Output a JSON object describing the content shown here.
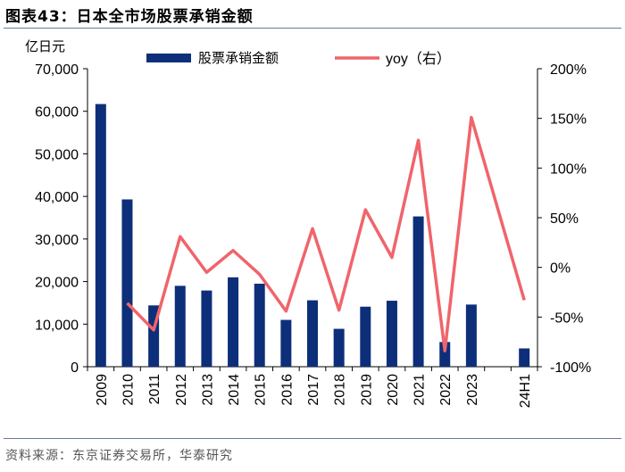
{
  "figure": {
    "label": "图表43：",
    "title": "日本全市场股票承销金额",
    "source": "资料来源：东京证券交易所，华泰研究"
  },
  "colors": {
    "bar": "#0d2f7a",
    "line": "#f0646b",
    "axis": "#000000"
  },
  "chart_data": {
    "type": "bar",
    "title": "日本全市场股票承销金额",
    "unit_label": "亿日元",
    "categories": [
      "2009",
      "2010",
      "2011",
      "2012",
      "2013",
      "2014",
      "2015",
      "2016",
      "2017",
      "2018",
      "2019",
      "2020",
      "2021",
      "2022",
      "2023",
      "",
      "24H1"
    ],
    "ylim": [
      0,
      70000
    ],
    "y_ticks": [
      0,
      10000,
      20000,
      30000,
      40000,
      50000,
      60000,
      70000
    ],
    "y_tick_labels": [
      "0",
      "10,000",
      "20,000",
      "30,000",
      "40,000",
      "50,000",
      "60,000",
      "70,000"
    ],
    "y2lim": [
      -100,
      200
    ],
    "y2_ticks": [
      -100,
      -50,
      0,
      50,
      100,
      150,
      200
    ],
    "y2_tick_labels": [
      "-100%",
      "-50%",
      "0%",
      "50%",
      "100%",
      "150%",
      "200%"
    ],
    "legend_position": "top",
    "series": [
      {
        "name": "股票承销金额",
        "type": "bar",
        "axis": "left",
        "values": [
          61700,
          39300,
          14400,
          19000,
          17900,
          21000,
          19500,
          11000,
          15600,
          8900,
          14100,
          15500,
          35300,
          5800,
          14600,
          null,
          4300
        ]
      },
      {
        "name": "yoy（右）",
        "type": "line",
        "axis": "right",
        "values": [
          null,
          -36,
          -63,
          31,
          -5,
          17,
          -7,
          -44,
          39,
          -43,
          58,
          10,
          128,
          -84,
          151,
          null,
          -33
        ]
      }
    ]
  }
}
